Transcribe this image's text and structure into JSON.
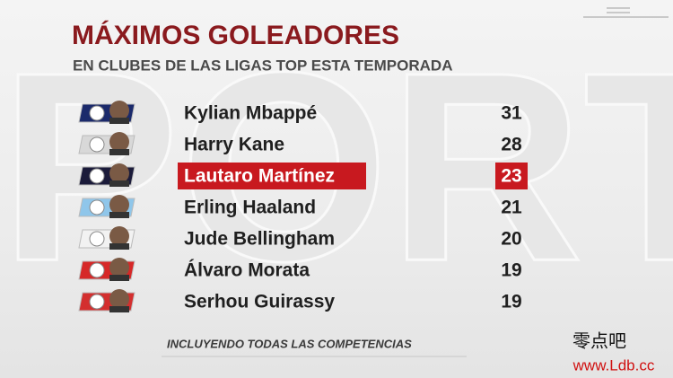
{
  "header": {
    "title": "MÁXIMOS GOLEADORES",
    "subtitle": "EN CLUBES DE LAS LIGAS TOP ESTA TEMPORADA"
  },
  "table": {
    "rows": [
      {
        "name": "Kylian Mbappé",
        "goals": 31
      },
      {
        "name": "Harry Kane",
        "goals": 28
      },
      {
        "name": "Lautaro Martínez",
        "goals": 23,
        "highlight": true
      },
      {
        "name": "Erling Haaland",
        "goals": 21
      },
      {
        "name": "Jude Bellingham",
        "goals": 20
      },
      {
        "name": "Álvaro Morata",
        "goals": 19
      },
      {
        "name": "Serhou Guirassy",
        "goals": 19
      }
    ]
  },
  "footer": {
    "note": "INCLUYENDO TODAS LAS COMPETENCIAS"
  },
  "watermark": {
    "name": "零点吧",
    "url": "www.Ldb.cc"
  }
}
